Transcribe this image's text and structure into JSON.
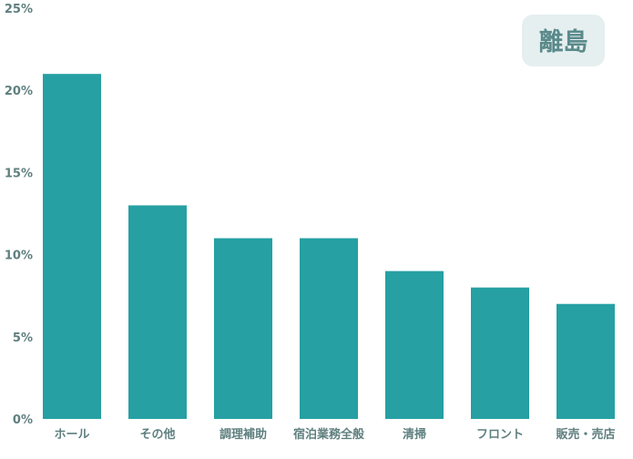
{
  "chart_data": {
    "type": "bar",
    "title": "",
    "badge": "離島",
    "categories": [
      "ホール",
      "その他",
      "調理補助",
      "宿泊業務全般",
      "清掃",
      "フロント",
      "販売・売店"
    ],
    "values": [
      21,
      13,
      11,
      11,
      9,
      8,
      7
    ],
    "unit": "%",
    "ylim": [
      0,
      25
    ],
    "yticks": [
      "0%",
      "5%",
      "10%",
      "15%",
      "20%",
      "25%"
    ],
    "grid": false,
    "colors": {
      "bar": "#26a0a3",
      "label": "#5f7f7f",
      "badge_bg": "#e6eff0",
      "badge_text": "#5a8a8a"
    }
  }
}
